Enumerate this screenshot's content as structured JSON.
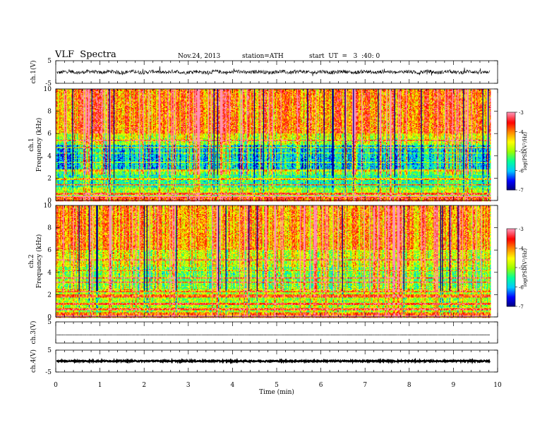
{
  "header": {
    "title": "VLF  Spectra",
    "date": "Nov.24, 2013",
    "station": "station=ATH",
    "start": "start  UT  =   3  :40: 0"
  },
  "chart_data": [
    {
      "type": "line",
      "ylabel": "ch.1(V)",
      "ylim": [
        -5,
        5
      ],
      "yticks": [
        "5",
        "-5"
      ],
      "baseline": 0,
      "approx_amplitude": 0.8
    },
    {
      "type": "heatmap",
      "ylabel": [
        "ch.1",
        "Frequency  (kHz)"
      ],
      "ylim": [
        0,
        10
      ],
      "yticks": [
        "0",
        "2",
        "4",
        "6",
        "8",
        "10"
      ],
      "colorbar": {
        "label": "log(PSD(V²/Hz)",
        "range": [
          -7,
          -3
        ],
        "ticks": [
          "-3",
          "-4",
          "-5",
          "-6",
          "-7"
        ]
      }
    },
    {
      "type": "heatmap",
      "ylabel": [
        "ch.2",
        "Frequency  (kHz)"
      ],
      "ylim": [
        0,
        10
      ],
      "yticks": [
        "0",
        "2",
        "4",
        "6",
        "8",
        "10"
      ],
      "colorbar": {
        "label": "log(PSD(V²/Hz)",
        "range": [
          -7,
          -3
        ],
        "ticks": [
          "-3",
          "-4",
          "-5",
          "-6",
          "-7"
        ]
      }
    },
    {
      "type": "line",
      "ylabel": "ch.3(V)",
      "ylim": [
        -5,
        5
      ],
      "yticks": [
        "5"
      ],
      "baseline": -1.2,
      "approx_amplitude": 0.05
    },
    {
      "type": "line",
      "ylabel": "ch.4(V)",
      "ylim": [
        -5,
        5
      ],
      "yticks": [
        "5",
        "-5"
      ],
      "baseline": 0,
      "approx_amplitude": 0.3
    }
  ],
  "xaxis": {
    "label": "Time  (min)",
    "xlim": [
      0,
      10
    ],
    "ticks": [
      "0",
      "1",
      "2",
      "3",
      "4",
      "5",
      "6",
      "7",
      "8",
      "9",
      "10"
    ],
    "data_end": 9.83
  },
  "colors": {
    "colormap": [
      "#00007a",
      "#0000ff",
      "#00c8ff",
      "#00ff9a",
      "#9aff00",
      "#ffff00",
      "#ff8800",
      "#ff0000",
      "#ff90b0"
    ],
    "ink": "#000000"
  }
}
